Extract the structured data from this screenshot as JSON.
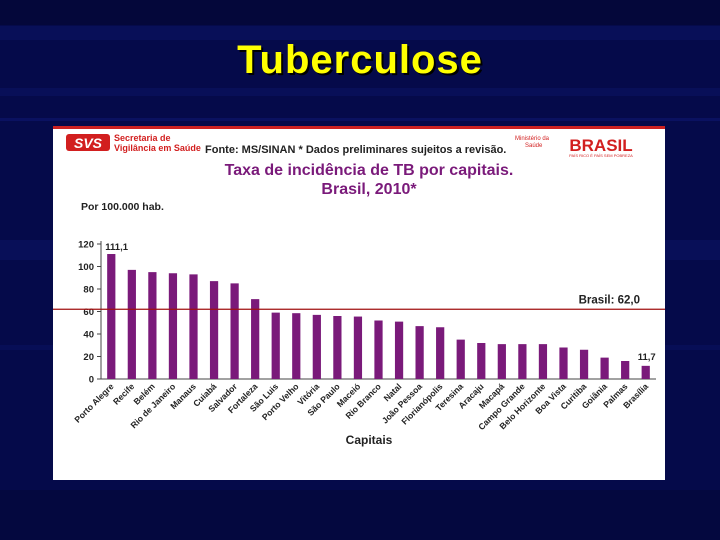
{
  "slide": {
    "title": "Tuberculose"
  },
  "chart_data": {
    "type": "bar",
    "title": "Taxa de incidência de TB por capitais.",
    "subtitle": "Brasil, 2010*",
    "unit_label": "Por 100.000 hab.",
    "xlabel": "Capitais",
    "ylabel": "",
    "ylim": [
      0,
      120
    ],
    "yticks": [
      0,
      20,
      40,
      60,
      80,
      100,
      120
    ],
    "grid": false,
    "categories": [
      "Porto Alegre",
      "Recife",
      "Belém",
      "Rio de Janeiro",
      "Manaus",
      "Cuiabá",
      "Salvador",
      "Fortaleza",
      "São Luis",
      "Porto Velho",
      "Vitória",
      "São Paulo",
      "Maceió",
      "Rio Branco",
      "Natal",
      "João Pessoa",
      "Florianópolis",
      "Teresina",
      "Aracaju",
      "Macapá",
      "Campo Grande",
      "Belo Horizonte",
      "Boa Vista",
      "Curitiba",
      "Goiânia",
      "Palmas",
      "Brasília"
    ],
    "values": [
      111.1,
      97,
      95,
      94,
      93,
      87,
      85,
      71,
      59,
      58.5,
      57,
      56,
      55.5,
      52,
      51,
      47,
      46,
      35,
      32,
      31,
      31,
      31,
      28,
      26,
      19,
      16,
      11.7
    ],
    "value_labels": [
      {
        "index": 0,
        "text": "111,1"
      },
      {
        "index": 26,
        "text": "11,7"
      }
    ],
    "reference_line": {
      "value": 62.0,
      "label": "Brasil: 62,0",
      "color": "#a01010"
    },
    "bar_color": "#7a1a7a"
  },
  "footer": {
    "source": "Fonte: MS/SINAN * Dados preliminares sujeitos a revisão.",
    "svs_logo": "SVS",
    "svs_line1": "Secretaria de",
    "svs_line2": "Vigilância em Saúde",
    "ministerio_line1": "Ministério da",
    "ministerio_line2": "Saúde",
    "brasil_logo": "BRASIL",
    "brasil_tagline": "PAÍS RICO É PAÍS SEM POBREZA",
    "colors": {
      "accent": "#d21f1f",
      "stripe": "#cc2222"
    }
  }
}
